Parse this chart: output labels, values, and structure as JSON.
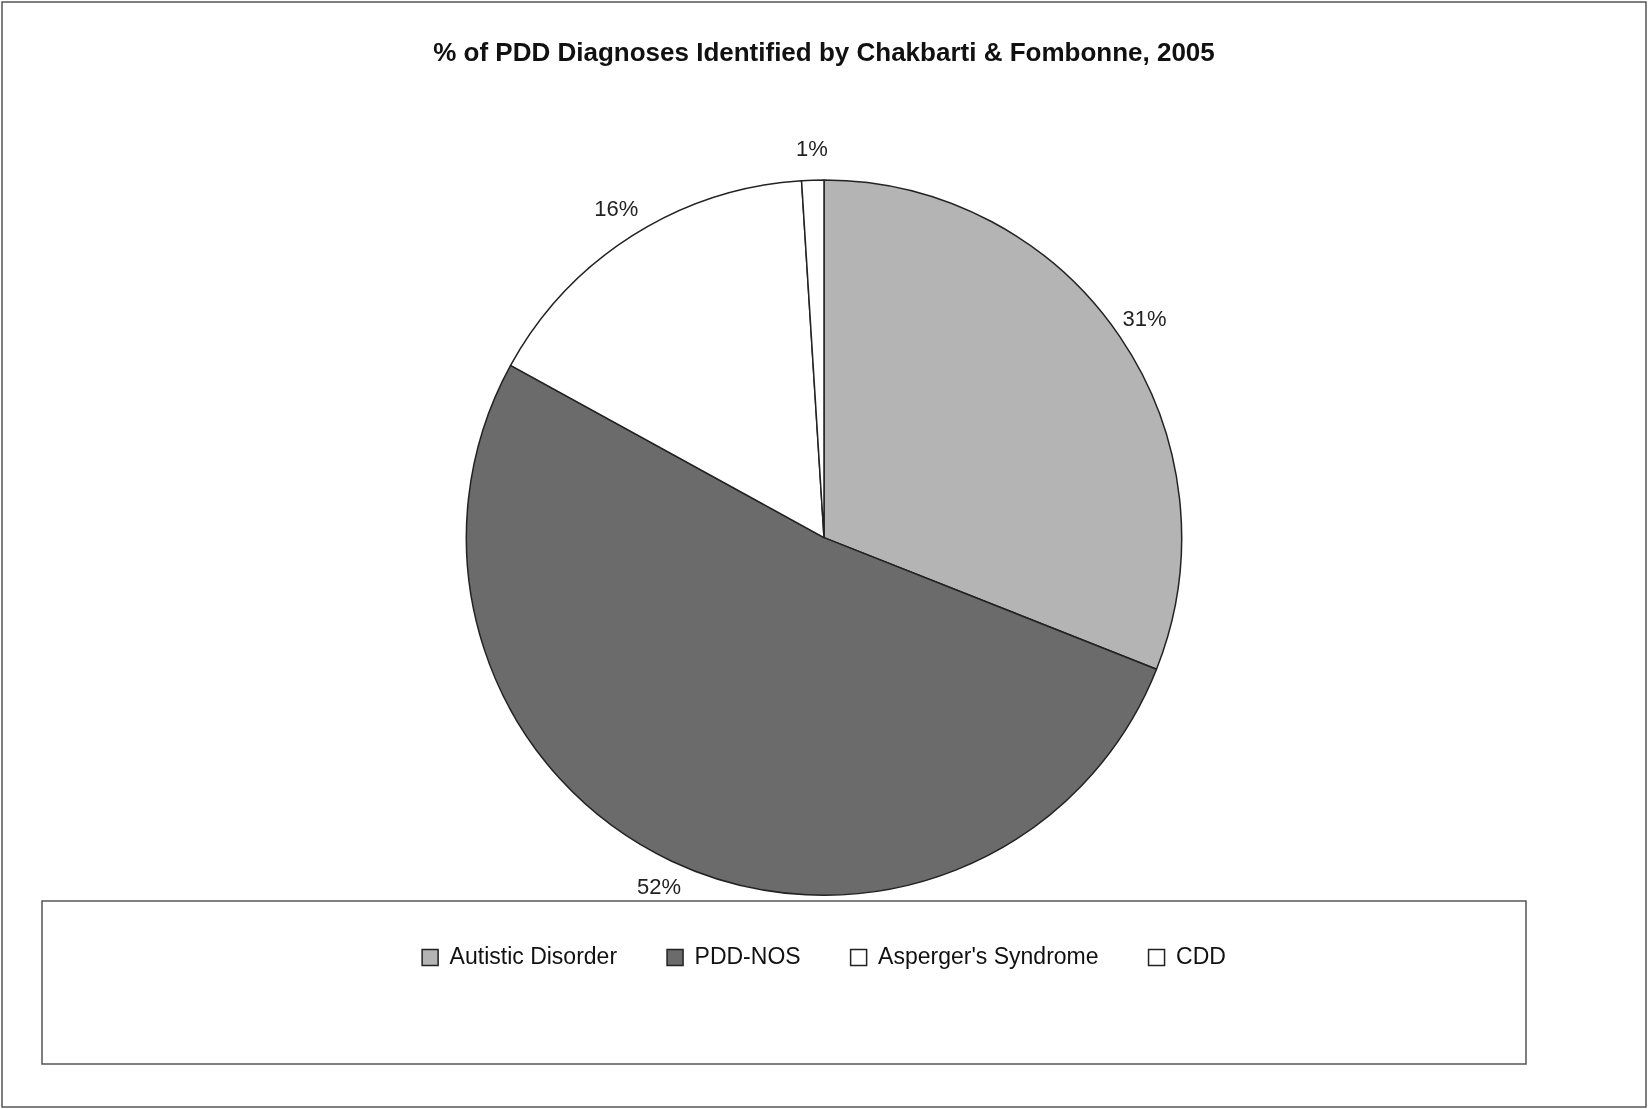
{
  "chart_data": {
    "type": "pie",
    "title": "% of PDD Diagnoses Identified by Chakbarti & Fombonne, 2005",
    "categories": [
      "Autistic Disorder",
      "PDD-NOS",
      "Asperger's Syndrome",
      "CDD"
    ],
    "values": [
      31,
      52,
      16,
      1
    ],
    "value_labels": [
      "31%",
      "52%",
      "16%",
      "1%"
    ],
    "colors": [
      "#b4b4b4",
      "#6b6b6b",
      "#ffffff",
      "#ffffff"
    ],
    "legend": "bottom"
  }
}
